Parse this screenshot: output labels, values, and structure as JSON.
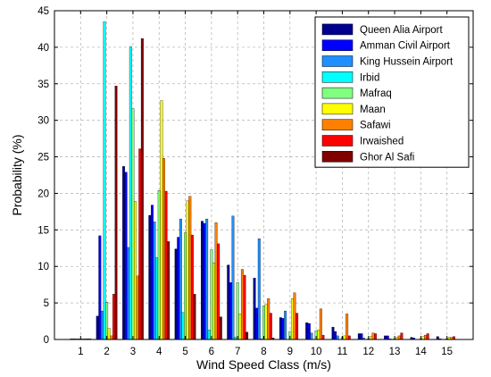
{
  "chart_data": {
    "type": "bar",
    "xlabel": "Wind Speed Class (m/s)",
    "ylabel": "Probability (%)",
    "ylim": [
      0,
      45
    ],
    "yticks": [
      0,
      5,
      10,
      15,
      20,
      25,
      30,
      35,
      40,
      45
    ],
    "grid": true,
    "legend_position": "top-right",
    "categories": [
      "1",
      "2",
      "3",
      "4",
      "5",
      "6",
      "7",
      "8",
      "9",
      "10",
      "11",
      "12",
      "13",
      "14",
      "15"
    ],
    "series": [
      {
        "name": "Queen Alia Airport",
        "color": "#00008f",
        "values": [
          0.1,
          3.2,
          23.7,
          17.0,
          12.4,
          16.2,
          10.2,
          8.4,
          3.0,
          2.3,
          1.7,
          0.8,
          0.5,
          0.3,
          0.4
        ]
      },
      {
        "name": "Amman Civil Airport",
        "color": "#0000ff",
        "values": [
          0.1,
          14.2,
          22.9,
          18.4,
          14.0,
          15.9,
          7.8,
          4.3,
          2.9,
          2.2,
          1.1,
          0.8,
          0.5,
          0.2,
          0.1
        ]
      },
      {
        "name": "King Hussein Airport",
        "color": "#1e90ff",
        "values": [
          0.1,
          3.9,
          12.6,
          16.1,
          16.5,
          16.5,
          16.9,
          13.8,
          3.9,
          0.9,
          0.5,
          0.2,
          0.1,
          0.0,
          0.0
        ]
      },
      {
        "name": "Irbid",
        "color": "#00ffff",
        "values": [
          0.1,
          43.5,
          40.1,
          11.2,
          3.7,
          1.3,
          0.3,
          0.1,
          0.0,
          0.0,
          0.0,
          0.0,
          0.0,
          0.0,
          0.0
        ]
      },
      {
        "name": "Mafraq",
        "color": "#80ff80",
        "values": [
          0.1,
          5.1,
          31.6,
          20.4,
          14.6,
          12.3,
          7.8,
          4.6,
          1.1,
          1.2,
          0.3,
          0.1,
          0.1,
          0.1,
          0.1
        ]
      },
      {
        "name": "Maan",
        "color": "#ffff00",
        "values": [
          0.1,
          1.5,
          18.9,
          32.7,
          19.0,
          10.5,
          3.5,
          4.8,
          5.6,
          1.3,
          0.5,
          0.4,
          0.3,
          0.4,
          0.3
        ]
      },
      {
        "name": "Safawi",
        "color": "#ff8000",
        "values": [
          0.1,
          0.5,
          8.7,
          24.8,
          19.6,
          16.0,
          9.6,
          5.6,
          6.4,
          4.2,
          3.5,
          0.9,
          0.5,
          0.6,
          0.3
        ]
      },
      {
        "name": "Irwaished",
        "color": "#ff0000",
        "values": [
          0.1,
          6.2,
          26.1,
          20.3,
          14.3,
          13.1,
          8.8,
          3.6,
          3.6,
          0.6,
          0.5,
          0.8,
          0.9,
          0.8,
          0.4
        ]
      },
      {
        "name": "Ghor Al Safi",
        "color": "#800000",
        "values": [
          0.1,
          34.7,
          41.2,
          13.4,
          6.2,
          3.1,
          1.0,
          0.2,
          0.0,
          0.0,
          0.0,
          0.0,
          0.0,
          0.0,
          0.0
        ]
      }
    ]
  }
}
